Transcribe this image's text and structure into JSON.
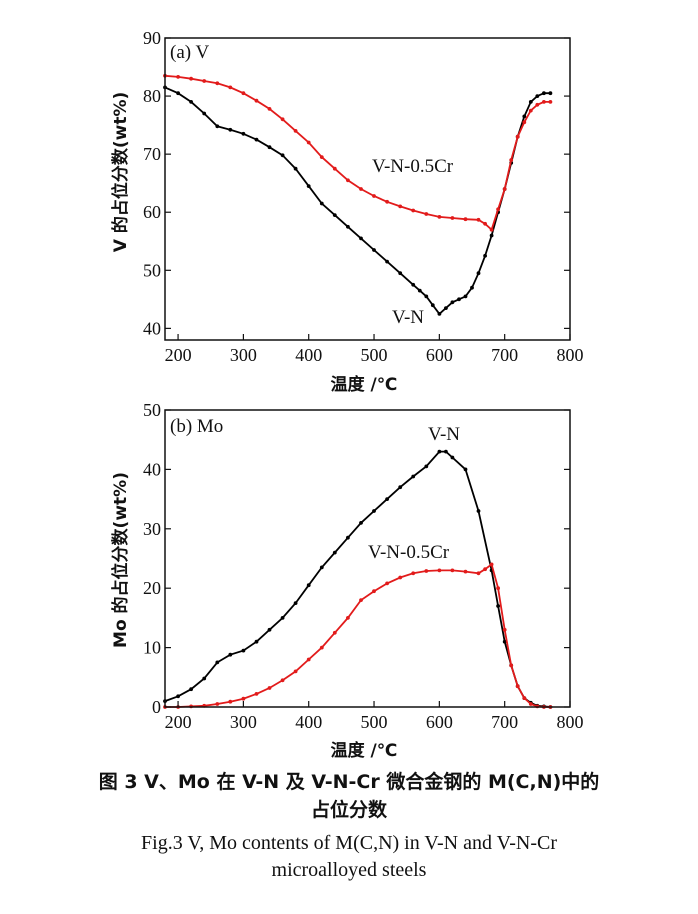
{
  "chart_data": [
    {
      "type": "line",
      "panel_label": "(a) V",
      "xlabel": "温度 /℃",
      "ylabel": "V 的占位分数(wt%)",
      "xlim": [
        180,
        800
      ],
      "ylim": [
        38,
        90
      ],
      "xticks": [
        200,
        300,
        400,
        500,
        600,
        700,
        800
      ],
      "yticks": [
        40,
        50,
        60,
        70,
        80,
        90
      ],
      "series": [
        {
          "name": "V-N",
          "color": "#000000",
          "x": [
            180,
            200,
            220,
            240,
            260,
            280,
            300,
            320,
            340,
            360,
            380,
            400,
            420,
            440,
            460,
            480,
            500,
            520,
            540,
            560,
            570,
            580,
            590,
            600,
            610,
            620,
            630,
            640,
            650,
            660,
            670,
            680,
            690,
            700,
            710,
            720,
            730,
            740,
            750,
            760,
            770
          ],
          "y": [
            81.5,
            80.5,
            79,
            77,
            74.8,
            74.2,
            73.5,
            72.5,
            71.2,
            69.8,
            67.5,
            64.5,
            61.5,
            59.5,
            57.5,
            55.5,
            53.5,
            51.5,
            49.5,
            47.5,
            46.5,
            45.5,
            44,
            42.5,
            43.5,
            44.5,
            45,
            45.5,
            47,
            49.5,
            52.5,
            56,
            60,
            64,
            68.5,
            73,
            76.5,
            79,
            80,
            80.5,
            80.5
          ]
        },
        {
          "name": "V-N-0.5Cr",
          "color": "#e21b1b",
          "x": [
            180,
            200,
            220,
            240,
            260,
            280,
            300,
            320,
            340,
            360,
            380,
            400,
            420,
            440,
            460,
            480,
            500,
            520,
            540,
            560,
            580,
            600,
            620,
            640,
            660,
            670,
            680,
            690,
            700,
            710,
            720,
            730,
            740,
            750,
            760,
            770
          ],
          "y": [
            83.5,
            83.3,
            83,
            82.6,
            82.2,
            81.5,
            80.5,
            79.2,
            77.8,
            76,
            74,
            72,
            69.5,
            67.5,
            65.5,
            64,
            62.8,
            61.8,
            61,
            60.3,
            59.7,
            59.2,
            59,
            58.8,
            58.7,
            58,
            57,
            60.5,
            64,
            69,
            73,
            75.5,
            77.5,
            78.5,
            79,
            79
          ]
        }
      ],
      "annotations": [
        {
          "text": "V-N-0.5Cr",
          "series": "V-N-0.5Cr"
        },
        {
          "text": "V-N",
          "series": "V-N"
        }
      ]
    },
    {
      "type": "line",
      "panel_label": "(b) Mo",
      "xlabel": "温度 /℃",
      "ylabel": "Mo 的占位分数(wt%)",
      "xlim": [
        180,
        800
      ],
      "ylim": [
        0,
        50
      ],
      "xticks": [
        200,
        300,
        400,
        500,
        600,
        700,
        800
      ],
      "yticks": [
        0,
        10,
        20,
        30,
        40,
        50
      ],
      "series": [
        {
          "name": "V-N",
          "color": "#000000",
          "x": [
            180,
            200,
            220,
            240,
            260,
            280,
            300,
            320,
            340,
            360,
            380,
            400,
            420,
            440,
            460,
            480,
            500,
            520,
            540,
            560,
            580,
            600,
            610,
            620,
            640,
            660,
            680,
            690,
            700,
            710,
            720,
            730,
            740,
            750,
            760,
            770
          ],
          "y": [
            1,
            1.8,
            3,
            4.8,
            7.5,
            8.8,
            9.5,
            11,
            13,
            15,
            17.5,
            20.5,
            23.5,
            26,
            28.5,
            31,
            33,
            35,
            37,
            38.8,
            40.5,
            43,
            43,
            42,
            40,
            33,
            23,
            17,
            11,
            7,
            3.5,
            1.5,
            0.7,
            0.2,
            0.1,
            0
          ]
        },
        {
          "name": "V-N-0.5Cr",
          "color": "#e21b1b",
          "x": [
            180,
            200,
            220,
            240,
            260,
            280,
            300,
            320,
            340,
            360,
            380,
            400,
            420,
            440,
            460,
            480,
            500,
            520,
            540,
            560,
            580,
            600,
            620,
            640,
            660,
            670,
            680,
            690,
            700,
            710,
            720,
            730,
            740,
            750,
            760,
            770
          ],
          "y": [
            0,
            0,
            0.1,
            0.2,
            0.5,
            0.9,
            1.4,
            2.2,
            3.2,
            4.5,
            6,
            8,
            10,
            12.5,
            15,
            18,
            19.5,
            20.8,
            21.8,
            22.5,
            22.9,
            23,
            23,
            22.8,
            22.5,
            23.2,
            24,
            20,
            13,
            7,
            3.5,
            1.5,
            0.5,
            0.1,
            0,
            0
          ]
        }
      ],
      "annotations": [
        {
          "text": "V-N",
          "series": "V-N"
        },
        {
          "text": "V-N-0.5Cr",
          "series": "V-N-0.5Cr"
        }
      ]
    }
  ],
  "caption": {
    "cn_line1": "图 3  V、Mo 在 V-N 及 V-N-Cr 微合金钢的 M(C,N)中的",
    "cn_line2": "占位分数",
    "en_line1": "Fig.3  V, Mo contents of M(C,N)  in  V-N and V-N-Cr",
    "en_line2": "microalloyed steels"
  }
}
